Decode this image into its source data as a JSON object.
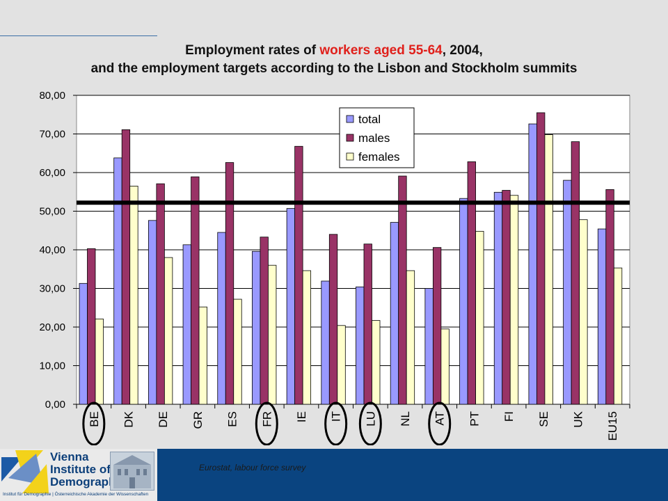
{
  "title": {
    "line1_pre": "Employment rates of ",
    "line1_highlight": "workers aged 55-64",
    "line1_post": ", 2004,",
    "line2": "and the employment targets according to the Lisbon and Stockholm summits"
  },
  "colors": {
    "total": "#9999ff",
    "males": "#993366",
    "females": "#ffffcc",
    "highlight": "#e0201b",
    "footer": "#0a4480"
  },
  "chart_data": {
    "type": "bar",
    "categories": [
      "BE",
      "DK",
      "DE",
      "GR",
      "ES",
      "FR",
      "IE",
      "IT",
      "LU",
      "NL",
      "AT",
      "PT",
      "FI",
      "SE",
      "UK",
      "EU15"
    ],
    "circled_categories": [
      "BE",
      "FR",
      "IT",
      "LU",
      "AT"
    ],
    "series": [
      {
        "name": "total",
        "values": [
          31.3,
          63.8,
          47.6,
          41.3,
          44.5,
          39.6,
          50.7,
          31.9,
          30.4,
          47.1,
          30.0,
          53.3,
          54.9,
          72.6,
          58.0,
          45.4
        ]
      },
      {
        "name": "males",
        "values": [
          40.3,
          71.1,
          57.1,
          58.9,
          62.6,
          43.3,
          66.8,
          44.0,
          41.5,
          59.1,
          40.6,
          62.8,
          55.4,
          75.5,
          68.0,
          55.6
        ]
      },
      {
        "name": "females",
        "values": [
          22.1,
          56.5,
          38.0,
          25.2,
          27.2,
          36.0,
          34.6,
          20.4,
          21.7,
          34.6,
          19.5,
          44.8,
          54.1,
          69.8,
          47.8,
          35.3
        ]
      }
    ],
    "reference_line": {
      "value": 52.2
    },
    "ylim": [
      0,
      80
    ],
    "yticks": [
      "0,00",
      "10,00",
      "20,00",
      "30,00",
      "40,00",
      "50,00",
      "60,00",
      "70,00",
      "80,00"
    ],
    "legend": [
      "total",
      "males",
      "females"
    ],
    "legend_position": "top-center",
    "grid": true
  },
  "footer": {
    "source": "Eurostat, labour force survey",
    "logo_line1": "Vienna",
    "logo_line2": "Institute of",
    "logo_line3": "Demography",
    "logo_subtitle": "Institut für Demographie | Österreichische Akademie der Wissenschaften"
  }
}
